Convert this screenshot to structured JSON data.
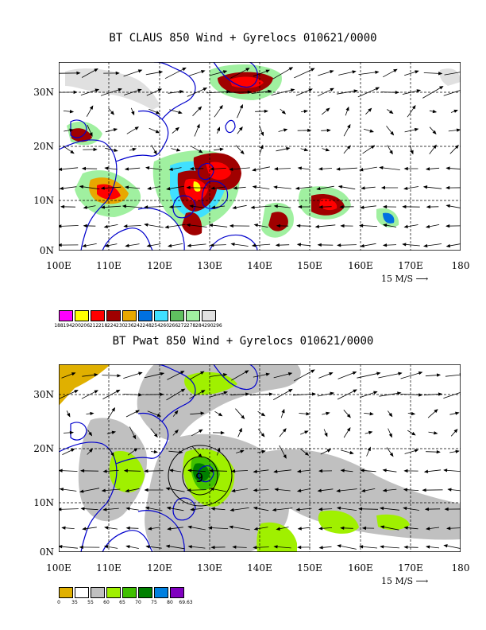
{
  "panel1": {
    "title": "BT CLAUS 850 Wind + Gyrelocs 010621/0000",
    "lat_labels": [
      "30N",
      "20N",
      "10N",
      "0N"
    ],
    "lon_labels": [
      "100E",
      "110E",
      "120E",
      "130E",
      "140E",
      "150E",
      "160E",
      "170E",
      "180"
    ],
    "scale_label": "15 M/S",
    "legend": {
      "colors": [
        "#ff00ff",
        "#ffff00",
        "#ff0000",
        "#a00000",
        "#e8a800",
        "#0070e0",
        "#40e0ff",
        "#60c060",
        "#a0f0a0",
        "#e0e0e0"
      ],
      "levels": [
        "188",
        "194",
        "200",
        "206",
        "212",
        "218",
        "224",
        "230",
        "236",
        "242",
        "248",
        "254",
        "260",
        "266",
        "272",
        "278",
        "284",
        "290",
        "296"
      ]
    }
  },
  "panel2": {
    "title": "BT Pwat 850 Wind + Gyrelocs 010621/0000",
    "lat_labels": [
      "30N",
      "20N",
      "10N",
      "0N"
    ],
    "lon_labels": [
      "100E",
      "110E",
      "120E",
      "130E",
      "140E",
      "150E",
      "160E",
      "170E",
      "180"
    ],
    "scale_label": "15 M/S",
    "system_label": "9",
    "legend": {
      "colors": [
        "#e0b000",
        "#ffffff",
        "#c0c0c0",
        "#a0f000",
        "#40c000",
        "#008000",
        "#0080e0",
        "#8000c0"
      ],
      "levels": [
        "0",
        "35",
        "55",
        "60",
        "65",
        "70",
        "75",
        "80",
        "69.63"
      ]
    }
  },
  "map_extent": {
    "lon": [
      100,
      180
    ],
    "lat": [
      0,
      35
    ]
  },
  "colors": {
    "coast": "#0000cc",
    "grid": "#000000",
    "wind": "#000000"
  }
}
